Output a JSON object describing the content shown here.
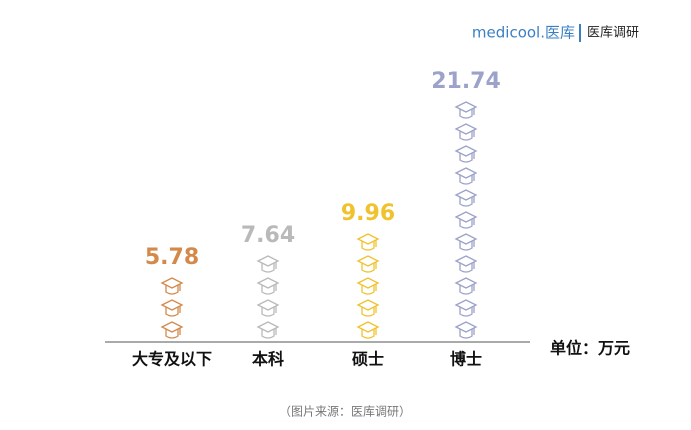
{
  "header": {
    "brand": "medicool.医库",
    "section": "医库调研"
  },
  "chart_data": {
    "type": "pictograph",
    "categories": [
      "大专及以下",
      "本科",
      "硕士",
      "博士"
    ],
    "values": [
      5.78,
      7.64,
      9.96,
      21.74
    ],
    "colors": [
      "#d4894a",
      "#b9b9b9",
      "#f0c22e",
      "#9ca2c9"
    ],
    "unit_label": "单位：万元",
    "source": "（图片来源：医库调研）"
  }
}
